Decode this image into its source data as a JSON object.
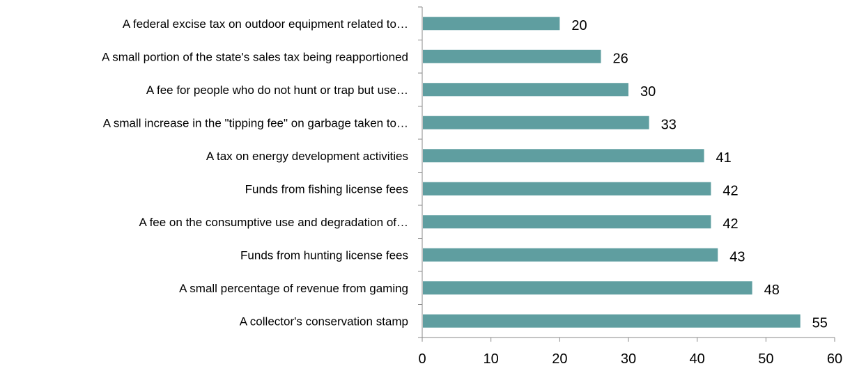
{
  "chart_data": {
    "type": "bar",
    "orientation": "horizontal",
    "categories": [
      "A federal excise tax on outdoor equipment related to…",
      "A small portion of the state's sales tax being reapportioned",
      "A fee for people who do not hunt or trap but use…",
      "A small increase in the \"tipping fee\" on garbage taken to…",
      "A tax on energy development activities",
      "Funds from fishing license fees",
      "A fee on the consumptive use and degradation of…",
      "Funds from hunting license fees",
      "A small percentage of revenue from gaming",
      "A collector's conservation stamp"
    ],
    "values": [
      20,
      26,
      30,
      33,
      41,
      42,
      42,
      43,
      48,
      55
    ],
    "data_labels": [
      "20",
      "26",
      "30",
      "33",
      "41",
      "42",
      "42",
      "43",
      "48",
      "55"
    ],
    "title": "",
    "xlabel": "",
    "ylabel": "",
    "xlim": [
      0,
      60
    ],
    "x_ticks": [
      "0",
      "10",
      "20",
      "30",
      "40",
      "50",
      "60"
    ],
    "grid": false,
    "legend": "none",
    "bar_color": "#5f9ea0",
    "axis_color": "#888888"
  }
}
